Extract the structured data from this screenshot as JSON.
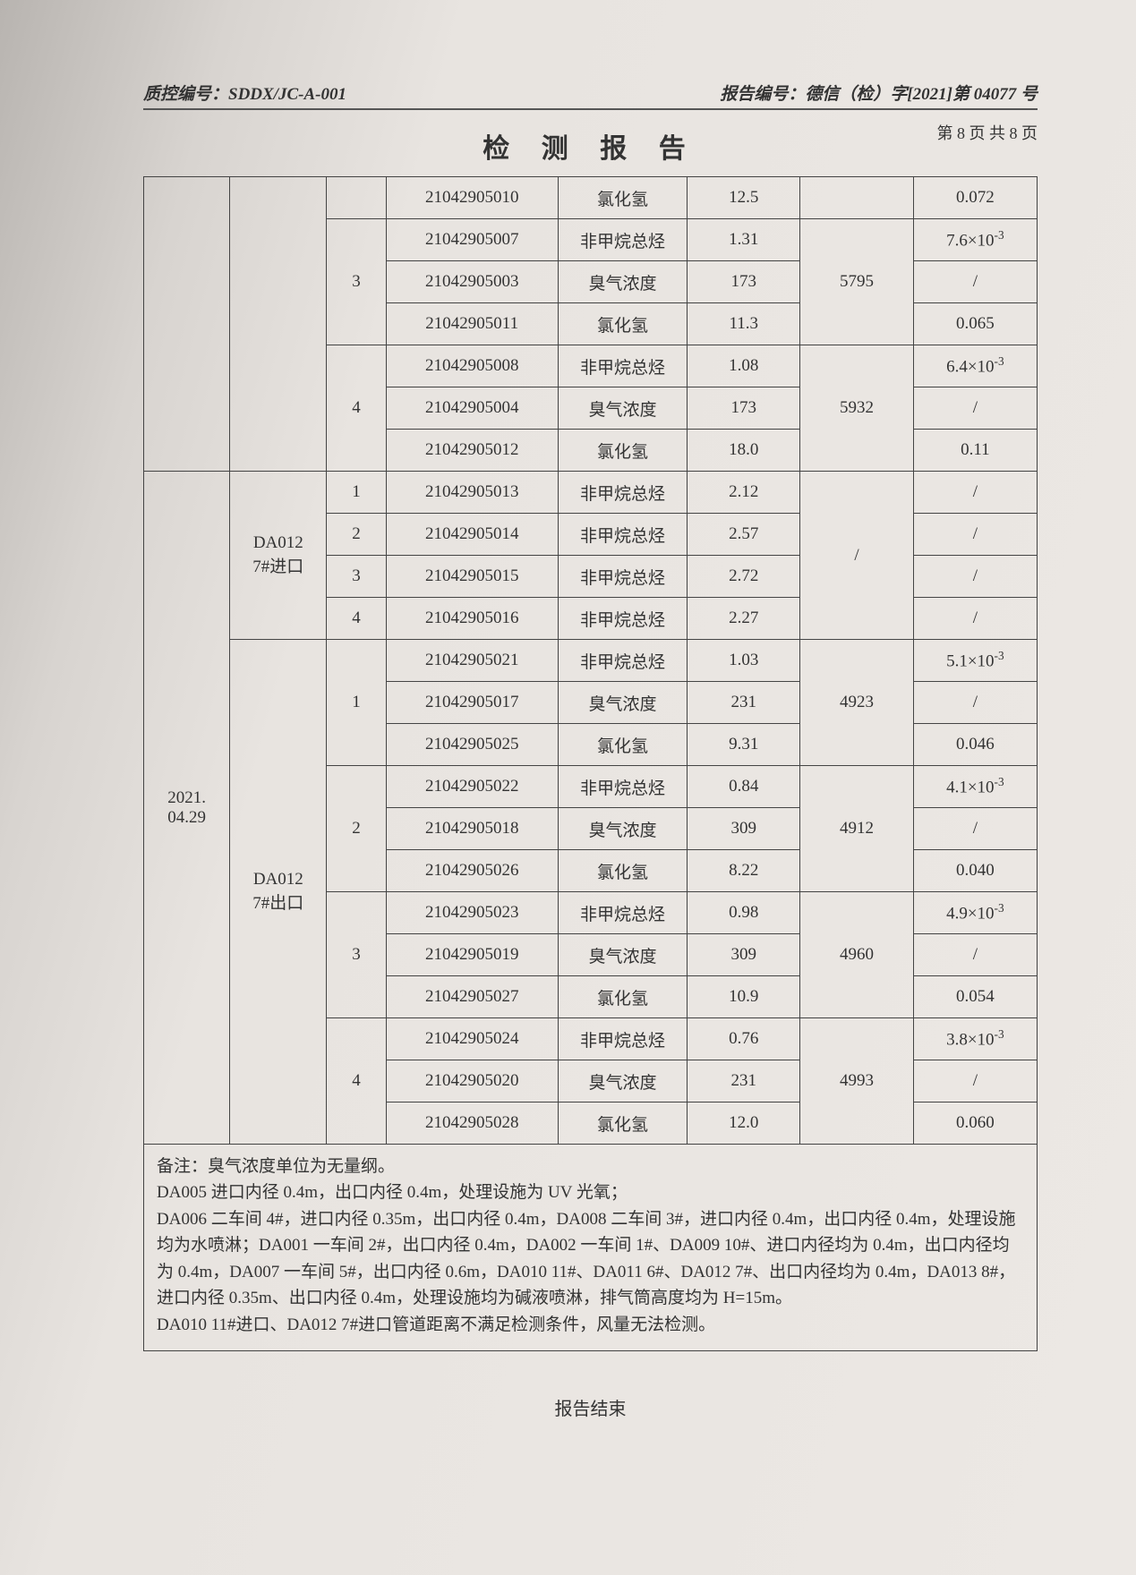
{
  "header": {
    "qc_label": "质控编号：SDDX/JC-A-001",
    "report_label": "报告编号：德信（检）字[2021]第 04077 号"
  },
  "title": "检 测 报 告",
  "page_num": "第 8 页 共 8 页",
  "date_label": "2021.\n04.29",
  "blocks": [
    {
      "point": "",
      "point_hidden": true,
      "groups": [
        {
          "seq": "",
          "seq_hidden": true,
          "vol": "",
          "vol_hidden": true,
          "rows": [
            {
              "id": "21042905010",
              "item": "氯化氢",
              "v1": "12.5",
              "v3": "0.072"
            }
          ]
        },
        {
          "seq": "3",
          "vol": "5795",
          "rows": [
            {
              "id": "21042905007",
              "item": "非甲烷总烃",
              "v1": "1.31",
              "v3": "7.6×10⁻³"
            },
            {
              "id": "21042905003",
              "item": "臭气浓度",
              "v1": "173",
              "v3": "/"
            },
            {
              "id": "21042905011",
              "item": "氯化氢",
              "v1": "11.3",
              "v3": "0.065"
            }
          ]
        },
        {
          "seq": "4",
          "vol": "5932",
          "rows": [
            {
              "id": "21042905008",
              "item": "非甲烷总烃",
              "v1": "1.08",
              "v3": "6.4×10⁻³"
            },
            {
              "id": "21042905004",
              "item": "臭气浓度",
              "v1": "173",
              "v3": "/"
            },
            {
              "id": "21042905012",
              "item": "氯化氢",
              "v1": "18.0",
              "v3": "0.11"
            }
          ]
        }
      ]
    },
    {
      "point": "DA012\n7#进口",
      "groups": [
        {
          "seq": "1",
          "vol_span4": "/",
          "rows": [
            {
              "id": "21042905013",
              "item": "非甲烷总烃",
              "v1": "2.12",
              "v3": "/"
            }
          ]
        },
        {
          "seq": "2",
          "rows": [
            {
              "id": "21042905014",
              "item": "非甲烷总烃",
              "v1": "2.57",
              "v3": "/"
            }
          ]
        },
        {
          "seq": "3",
          "rows": [
            {
              "id": "21042905015",
              "item": "非甲烷总烃",
              "v1": "2.72",
              "v3": "/"
            }
          ]
        },
        {
          "seq": "4",
          "rows": [
            {
              "id": "21042905016",
              "item": "非甲烷总烃",
              "v1": "2.27",
              "v3": "/"
            }
          ]
        }
      ]
    },
    {
      "point": "DA012\n7#出口",
      "groups": [
        {
          "seq": "1",
          "vol": "4923",
          "rows": [
            {
              "id": "21042905021",
              "item": "非甲烷总烃",
              "v1": "1.03",
              "v3": "5.1×10⁻³"
            },
            {
              "id": "21042905017",
              "item": "臭气浓度",
              "v1": "231",
              "v3": "/"
            },
            {
              "id": "21042905025",
              "item": "氯化氢",
              "v1": "9.31",
              "v3": "0.046"
            }
          ]
        },
        {
          "seq": "2",
          "vol": "4912",
          "rows": [
            {
              "id": "21042905022",
              "item": "非甲烷总烃",
              "v1": "0.84",
              "v3": "4.1×10⁻³"
            },
            {
              "id": "21042905018",
              "item": "臭气浓度",
              "v1": "309",
              "v3": "/"
            },
            {
              "id": "21042905026",
              "item": "氯化氢",
              "v1": "8.22",
              "v3": "0.040"
            }
          ]
        },
        {
          "seq": "3",
          "vol": "4960",
          "rows": [
            {
              "id": "21042905023",
              "item": "非甲烷总烃",
              "v1": "0.98",
              "v3": "4.9×10⁻³"
            },
            {
              "id": "21042905019",
              "item": "臭气浓度",
              "v1": "309",
              "v3": "/"
            },
            {
              "id": "21042905027",
              "item": "氯化氢",
              "v1": "10.9",
              "v3": "0.054"
            }
          ]
        },
        {
          "seq": "4",
          "vol": "4993",
          "rows": [
            {
              "id": "21042905024",
              "item": "非甲烷总烃",
              "v1": "0.76",
              "v3": "3.8×10⁻³"
            },
            {
              "id": "21042905020",
              "item": "臭气浓度",
              "v1": "231",
              "v3": "/"
            },
            {
              "id": "21042905028",
              "item": "氯化氢",
              "v1": "12.0",
              "v3": "0.060"
            }
          ]
        }
      ]
    }
  ],
  "notes": {
    "l1": "备注：臭气浓度单位为无量纲。",
    "l2": "DA005 进口内径 0.4m，出口内径 0.4m，处理设施为 UV 光氧；",
    "l3": "DA006 二车间 4#，进口内径 0.35m，出口内径 0.4m，DA008 二车间 3#，进口内径 0.4m，出口内径 0.4m，处理设施均为水喷淋；DA001 一车间 2#，出口内径 0.4m，DA002 一车间 1#、DA009 10#、进口内径均为 0.4m，出口内径均为 0.4m，DA007 一车间 5#，出口内径 0.6m，DA010 11#、DA011 6#、DA012 7#、出口内径均为 0.4m，DA013 8#，进口内径 0.35m、出口内径 0.4m，处理设施均为碱液喷淋，排气筒高度均为 H=15m。",
    "l4": "DA010 11#进口、DA012 7#进口管道距离不满足检测条件，风量无法检测。"
  },
  "end": "报告结束"
}
